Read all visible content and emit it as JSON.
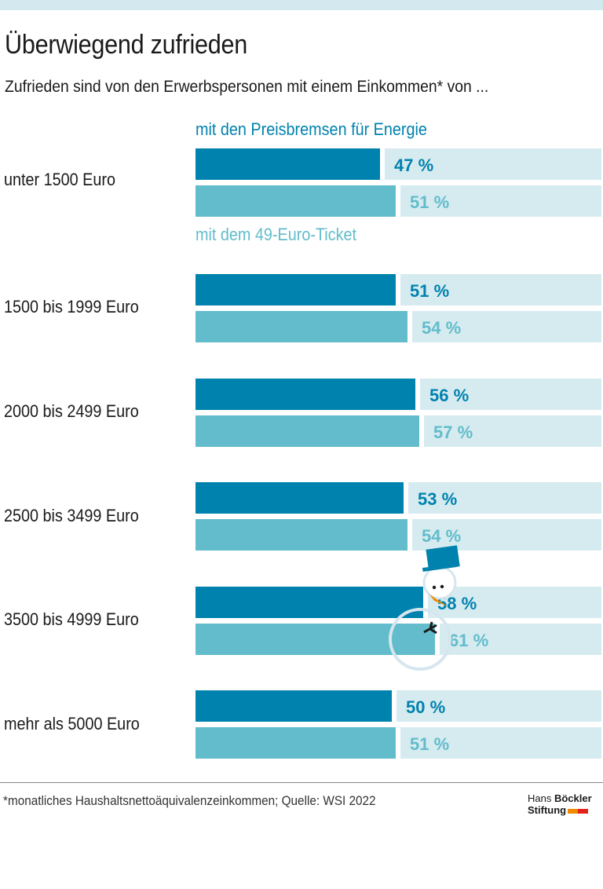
{
  "title": "Überwiegend zufrieden",
  "subtitle": "Zufrieden sind von den Erwerbspersonen mit einem Einkommen* von ...",
  "footnote": "*monatliches Haushaltsnettoäquivalenzeinkommen; Quelle: WSI 2022",
  "logo": {
    "line1_a": "Hans ",
    "line1_b": "Böckler",
    "line2": "Stiftung"
  },
  "colors": {
    "series1": "#0082ae",
    "series2": "#62bccb",
    "track": "#d6ebf0",
    "logo_orange": "#f08a00",
    "logo_red": "#e2231a"
  },
  "chart_data": {
    "type": "bar",
    "orientation": "horizontal",
    "title": "Überwiegend zufrieden",
    "categories": [
      "unter 1500 Euro",
      "1500 bis 1999 Euro",
      "2000 bis 2499 Euro",
      "2500 bis 3499 Euro",
      "3500 bis 4999 Euro",
      "mehr als 5000 Euro"
    ],
    "series": [
      {
        "name": "mit den Preisbremsen für Energie",
        "values": [
          47,
          51,
          56,
          53,
          58,
          50
        ]
      },
      {
        "name": "mit dem 49-Euro-Ticket",
        "values": [
          51,
          54,
          57,
          54,
          61,
          51
        ]
      }
    ],
    "xlim": [
      0,
      100
    ],
    "unit": "%",
    "value_labels": [
      [
        "47 %",
        "51 %",
        "56 %",
        "53 %",
        "58 %",
        "50 %"
      ],
      [
        "51 %",
        "54 %",
        "57 %",
        "54 %",
        "61 %",
        "51 %"
      ]
    ],
    "legend": "top, above bars",
    "decoration": "snowman"
  }
}
